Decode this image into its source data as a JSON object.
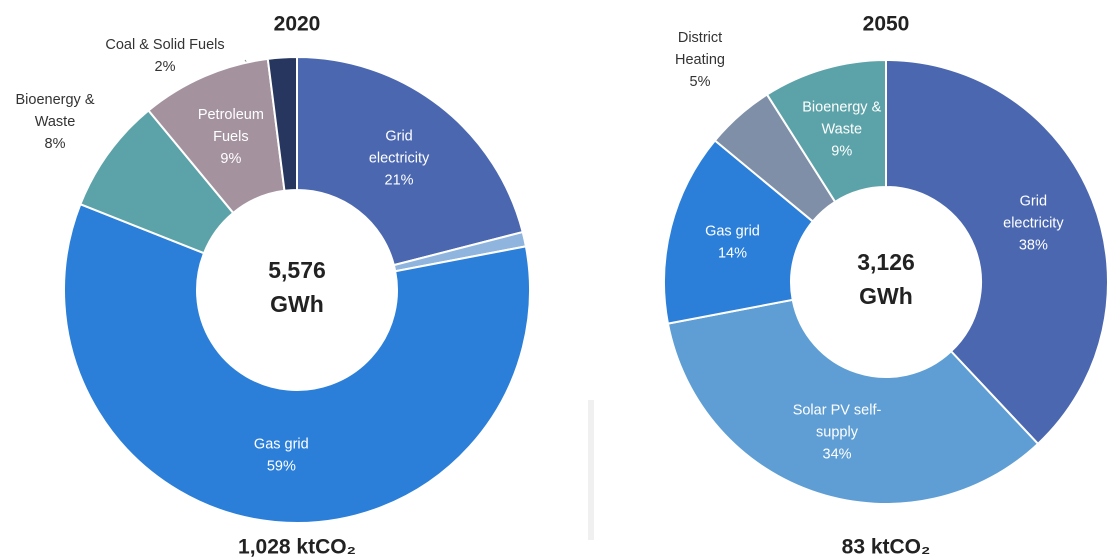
{
  "chart_data": [
    {
      "type": "pie",
      "title": "2020",
      "center_value": "5,576",
      "center_unit": "GWh",
      "footer": "1,028 ktCO₂",
      "categories": [
        [
          "Grid",
          "electricity"
        ],
        null,
        [
          "Gas grid"
        ],
        [
          "Bioenergy &",
          "Waste"
        ],
        [
          "Petroleum",
          "Fuels"
        ],
        [
          "Coal & Solid Fuels"
        ]
      ],
      "values": [
        21,
        1,
        59,
        8,
        9,
        2
      ],
      "value_labels": [
        "21%",
        null,
        "59%",
        "8%",
        "9%",
        "2%"
      ],
      "colors": [
        "#4a67b0",
        "#8fb4de",
        "#2b7fd8",
        "#5ba3a8",
        "#a4939f",
        "#27365e"
      ]
    },
    {
      "type": "pie",
      "title": "2050",
      "center_value": "3,126",
      "center_unit": "GWh",
      "footer": "83 ktCO₂",
      "categories": [
        [
          "Grid",
          "electricity"
        ],
        [
          "Solar PV self-",
          "supply"
        ],
        [
          "Gas grid"
        ],
        [
          "District",
          "Heating"
        ],
        [
          "Bioenergy &",
          "Waste"
        ]
      ],
      "values": [
        38,
        34,
        14,
        5,
        9
      ],
      "value_labels": [
        "38%",
        "34%",
        "14%",
        "5%",
        "9%"
      ],
      "colors": [
        "#4a67b0",
        "#5f9ed4",
        "#2b7fd8",
        "#7f8fa8",
        "#5ba3a8"
      ]
    }
  ]
}
